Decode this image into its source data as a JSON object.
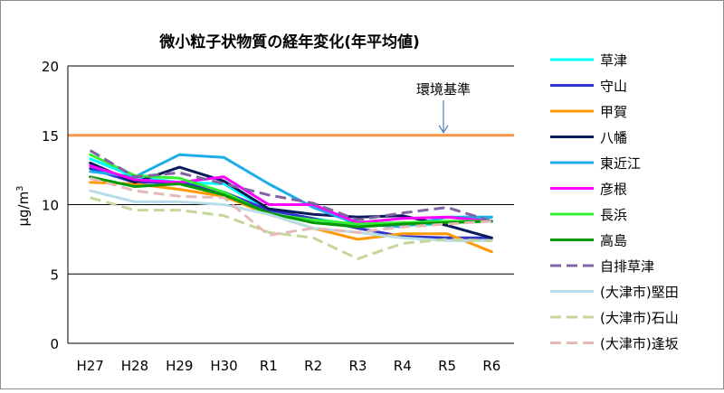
{
  "chart_data": {
    "type": "line",
    "title": "微小粒子状物質の経年変化(年平均値)",
    "ylabel": "μg/m3",
    "ylabel_parts": {
      "mu": "μ",
      "unit": "g/m",
      "sup": "3"
    },
    "xlabel": "",
    "ylim": [
      0,
      20
    ],
    "yticks": [
      0,
      5,
      10,
      15,
      20
    ],
    "grid": true,
    "legend_position": "right",
    "categories": [
      "H27",
      "H28",
      "H29",
      "H30",
      "R1",
      "R2",
      "R3",
      "R4",
      "R5",
      "R6"
    ],
    "reference": {
      "label": "環境基準",
      "value": 15,
      "color": "#F79646"
    },
    "series": [
      {
        "name": "草津",
        "color": "#00FFFF",
        "dash": false,
        "values": [
          13.3,
          12.0,
          11.6,
          11.5,
          9.6,
          9.0,
          8.5,
          8.5,
          8.6,
          9.1
        ]
      },
      {
        "name": "守山",
        "color": "#3333CC",
        "dash": false,
        "values": [
          12.6,
          11.6,
          11.6,
          10.9,
          9.6,
          9.0,
          8.3,
          7.7,
          7.6,
          7.6
        ]
      },
      {
        "name": "甲賀",
        "color": "#FF9900",
        "dash": false,
        "values": [
          11.6,
          11.5,
          11.1,
          10.6,
          9.3,
          8.3,
          7.5,
          7.9,
          7.9,
          6.6
        ]
      },
      {
        "name": "八幡",
        "color": "#0A1A5C",
        "dash": false,
        "values": [
          13.0,
          11.6,
          12.7,
          11.7,
          9.7,
          9.3,
          9.1,
          9.2,
          8.5,
          7.6
        ]
      },
      {
        "name": "東近江",
        "color": "#1AADE8",
        "dash": false,
        "values": [
          12.4,
          12.0,
          13.6,
          13.4,
          11.5,
          9.8,
          8.6,
          8.4,
          9.1,
          9.1
        ]
      },
      {
        "name": "彦根",
        "color": "#FF00FF",
        "dash": false,
        "values": [
          12.8,
          11.8,
          11.6,
          12.0,
          10.0,
          10.0,
          8.7,
          9.0,
          9.1,
          8.8
        ]
      },
      {
        "name": "長浜",
        "color": "#33EE33",
        "dash": false,
        "values": [
          13.6,
          12.1,
          11.9,
          10.9,
          9.3,
          8.9,
          8.6,
          8.7,
          8.8,
          8.8
        ]
      },
      {
        "name": "高島",
        "color": "#009900",
        "dash": false,
        "values": [
          12.0,
          11.3,
          11.5,
          10.7,
          9.4,
          8.7,
          8.4,
          8.6,
          8.7,
          8.8
        ]
      },
      {
        "name": "自排草津",
        "color": "#8064A2",
        "dash": true,
        "values": [
          13.9,
          12.0,
          12.3,
          11.5,
          10.7,
          10.1,
          8.9,
          9.4,
          9.8,
          8.8
        ]
      },
      {
        "name": "(大津市)堅田",
        "color": "#B7DEE8",
        "dash": false,
        "values": [
          11.0,
          10.2,
          10.2,
          10.0,
          9.3,
          8.3,
          8.0,
          7.6,
          7.4,
          7.4
        ]
      },
      {
        "name": "(大津市)石山",
        "color": "#C4D79B",
        "dash": true,
        "values": [
          10.5,
          9.6,
          9.6,
          9.2,
          8.0,
          7.6,
          6.1,
          7.2,
          7.5,
          7.4
        ]
      },
      {
        "name": "(大津市)逢坂",
        "color": "#E6B8B7",
        "dash": true,
        "values": [
          11.9,
          11.0,
          10.6,
          10.5,
          7.8,
          8.3,
          8.0,
          8.4,
          8.6,
          8.8
        ]
      }
    ]
  }
}
